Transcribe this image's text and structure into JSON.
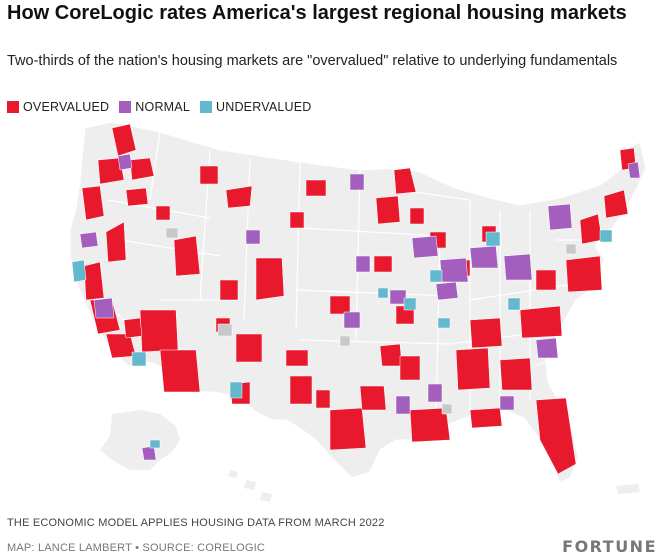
{
  "title": "How CoreLogic rates America's largest regional housing markets",
  "subtitle": "Two-thirds of the nation's housing markets are \"overvalued\" relative to underlying fundamentals",
  "legend": [
    {
      "label": "OVERVALUED",
      "color": "#e8192c"
    },
    {
      "label": "NORMAL",
      "color": "#a45fbe"
    },
    {
      "label": "UNDERVALUED",
      "color": "#62b8cc"
    }
  ],
  "colors": {
    "land": "#eeeeee",
    "border": "#ffffff",
    "unrated": "#c8c8c8"
  },
  "footnote": "THE ECONOMIC MODEL APPLIES HOUSING DATA FROM MARCH 2022",
  "credit": "MAP: LANCE LAMBERT • SOURCE: CORELOGIC",
  "brand": "FORTUNE"
}
